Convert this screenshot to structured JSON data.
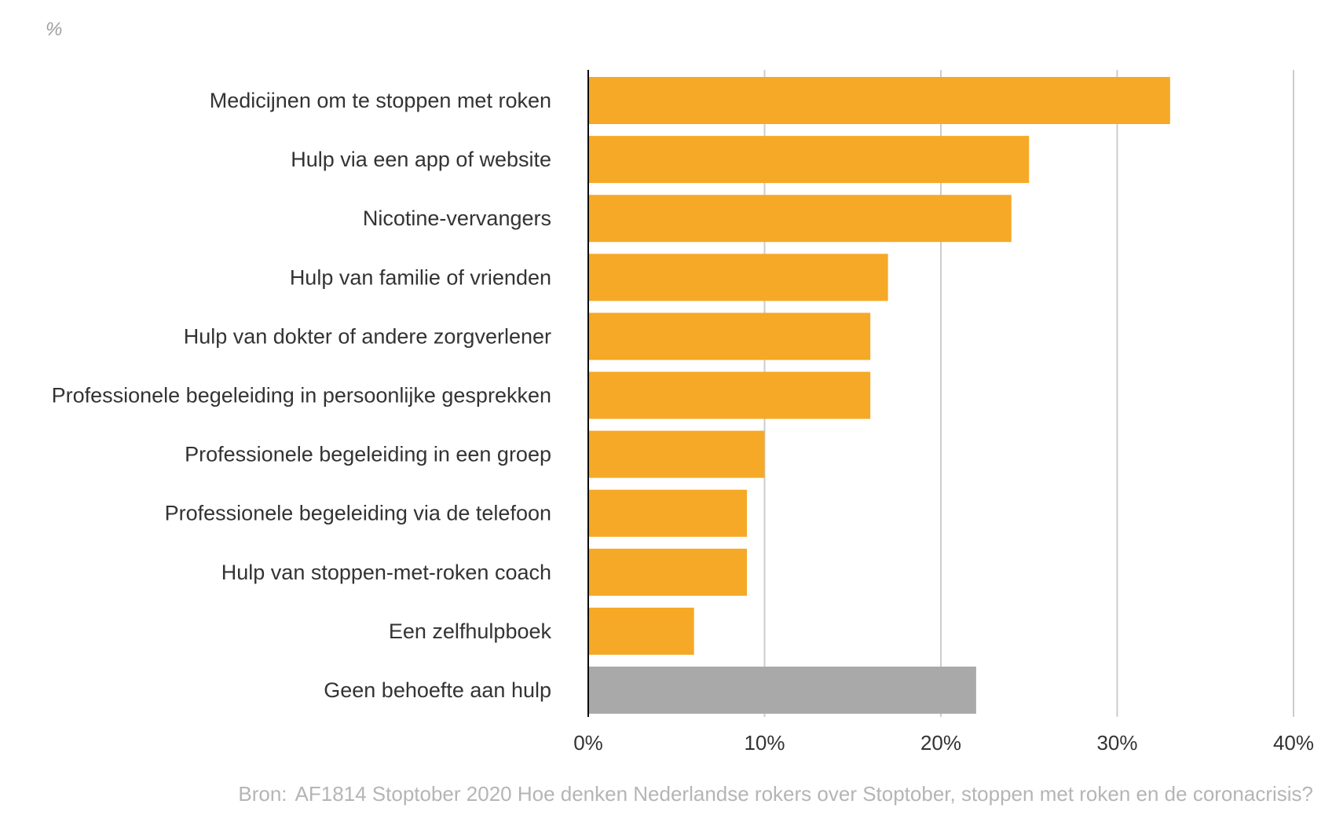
{
  "unit_label": "%",
  "source": {
    "prefix": "Bron:",
    "text": "AF1814 Stoptober 2020 Hoe denken Nederlandse rokers over Stoptober, stoppen met roken en de coronacrisis?"
  },
  "colors": {
    "bar": "#f5a927",
    "bar_highlight": "#a9a9a9",
    "grid": "#cccccc",
    "axis": "#000000"
  },
  "chart_data": {
    "type": "bar",
    "orientation": "horizontal",
    "categories": [
      "Medicijnen om te stoppen met roken",
      "Hulp via een app of website",
      "Nicotine-vervangers",
      "Hulp van familie of vrienden",
      "Hulp van dokter of andere zorgverlener",
      "Professionele begeleiding in persoonlijke gesprekken",
      "Professionele begeleiding in een groep",
      "Professionele begeleiding via de telefoon",
      "Hulp van stoppen-met-roken coach",
      "Een zelfhulpboek",
      "Geen behoefte aan hulp"
    ],
    "values": [
      33,
      25,
      24,
      17,
      16,
      16,
      10,
      9,
      9,
      6,
      22
    ],
    "highlight_categories": [
      "Geen behoefte aan hulp"
    ],
    "xlim": [
      0,
      40
    ],
    "x_ticks": [
      0,
      10,
      20,
      30,
      40
    ],
    "x_tick_labels": [
      "0%",
      "10%",
      "20%",
      "30%",
      "40%"
    ],
    "grid": true
  }
}
